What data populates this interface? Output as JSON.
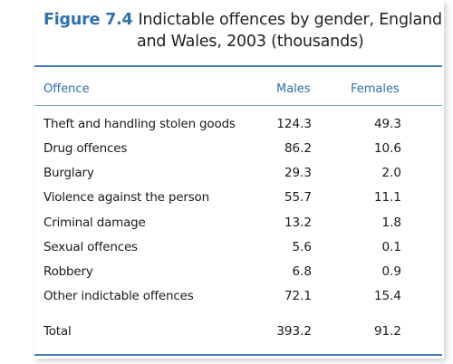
{
  "figure": {
    "label": "Figure 7.4",
    "title_line1": "Indictable offences by gender, England",
    "title_line2": "and Wales, 2003 (thousands)"
  },
  "table": {
    "headers": {
      "offence": "Offence",
      "males": "Males",
      "females": "Females"
    },
    "rows": [
      {
        "offence": "Theft and handling stolen goods",
        "males": "124.3",
        "females": "49.3"
      },
      {
        "offence": "Drug offences",
        "males": "86.2",
        "females": "10.6"
      },
      {
        "offence": "Burglary",
        "males": "29.3",
        "females": "2.0"
      },
      {
        "offence": "Violence against the person",
        "males": "55.7",
        "females": "11.1"
      },
      {
        "offence": "Criminal damage",
        "males": "13.2",
        "females": "1.8"
      },
      {
        "offence": "Sexual offences",
        "males": "5.6",
        "females": "0.1"
      },
      {
        "offence": "Robbery",
        "males": "6.8",
        "females": "0.9"
      },
      {
        "offence": "Other indictable offences",
        "males": "72.1",
        "females": "15.4"
      }
    ],
    "total": {
      "offence": "Total",
      "males": "393.2",
      "females": "91.2"
    }
  }
}
